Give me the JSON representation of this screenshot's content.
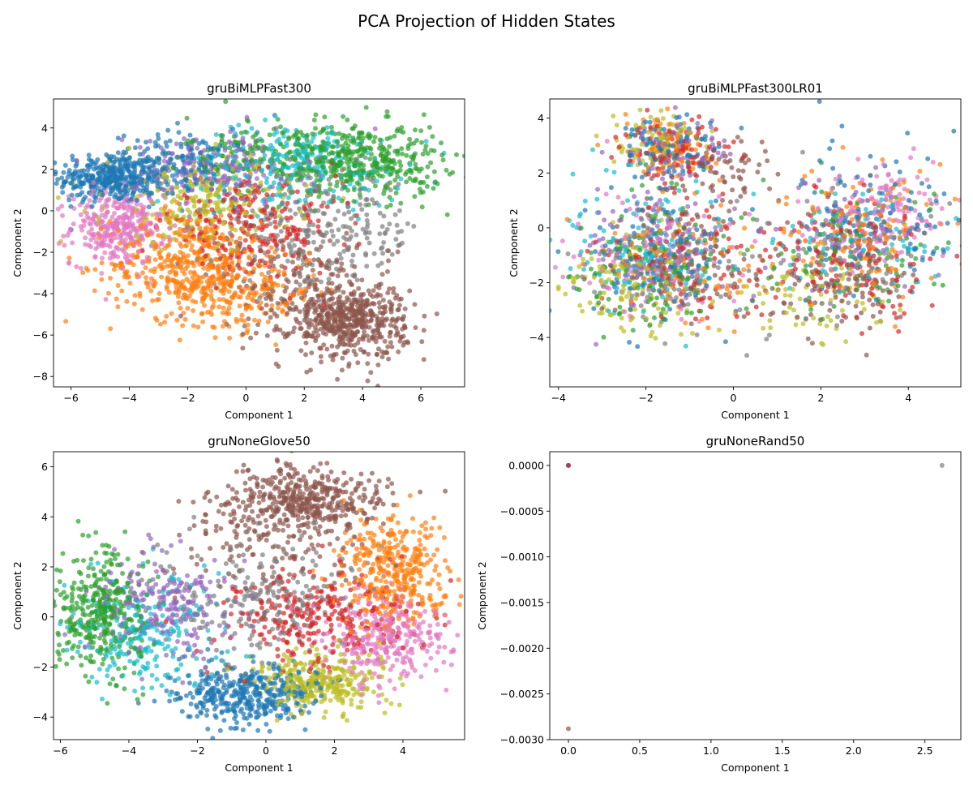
{
  "figure": {
    "title": "PCA Projection of Hidden States"
  },
  "palette": [
    "#1f77b4",
    "#ff7f0e",
    "#2ca02c",
    "#d62728",
    "#9467bd",
    "#8c564b",
    "#e377c2",
    "#7f7f7f",
    "#bcbd22",
    "#17becf"
  ],
  "chart_data": [
    {
      "type": "scatter",
      "title": "gruBiMLPFast300",
      "xlabel": "Component 1",
      "ylabel": "Component 2",
      "xlim": [
        -6.6,
        7.5
      ],
      "ylim": [
        -8.5,
        5.4
      ],
      "xticks": [
        -6,
        -4,
        -2,
        0,
        2,
        4,
        6
      ],
      "yticks": [
        -8,
        -6,
        -4,
        -2,
        0,
        2,
        4
      ],
      "clusters": [
        {
          "color": "#1f77b4",
          "center": [
            -4.6,
            1.6
          ],
          "spread": [
            0.9,
            0.6
          ],
          "n": 380
        },
        {
          "color": "#1f77b4",
          "center": [
            -2.2,
            2.2
          ],
          "spread": [
            1.2,
            0.8
          ],
          "n": 160
        },
        {
          "color": "#e377c2",
          "center": [
            -4.4,
            -0.8
          ],
          "spread": [
            0.8,
            0.9
          ],
          "n": 320
        },
        {
          "color": "#ff7f0e",
          "center": [
            -2.0,
            -2.6
          ],
          "spread": [
            1.3,
            1.3
          ],
          "n": 420
        },
        {
          "color": "#ff7f0e",
          "center": [
            0.0,
            -3.8
          ],
          "spread": [
            1.3,
            1.0
          ],
          "n": 180
        },
        {
          "color": "#2ca02c",
          "center": [
            4.0,
            2.4
          ],
          "spread": [
            1.4,
            0.9
          ],
          "n": 380
        },
        {
          "color": "#2ca02c",
          "center": [
            1.0,
            2.8
          ],
          "spread": [
            1.5,
            0.9
          ],
          "n": 160
        },
        {
          "color": "#17becf",
          "center": [
            1.8,
            2.2
          ],
          "spread": [
            1.8,
            1.0
          ],
          "n": 240
        },
        {
          "color": "#9467bd",
          "center": [
            -1.0,
            2.0
          ],
          "spread": [
            1.5,
            0.9
          ],
          "n": 200
        },
        {
          "color": "#bcbd22",
          "center": [
            -1.5,
            0.4
          ],
          "spread": [
            1.6,
            1.1
          ],
          "n": 240
        },
        {
          "color": "#d62728",
          "center": [
            0.2,
            -0.8
          ],
          "spread": [
            1.5,
            1.1
          ],
          "n": 240
        },
        {
          "color": "#7f7f7f",
          "center": [
            2.5,
            -1.0
          ],
          "spread": [
            1.8,
            1.4
          ],
          "n": 260
        },
        {
          "color": "#8c564b",
          "center": [
            3.5,
            -5.3
          ],
          "spread": [
            1.0,
            0.9
          ],
          "n": 520
        },
        {
          "color": "#8c564b",
          "center": [
            2.0,
            -3.6
          ],
          "spread": [
            1.6,
            1.2
          ],
          "n": 160
        }
      ]
    },
    {
      "type": "scatter",
      "title": "gruBiMLPFast300LR01",
      "xlabel": "Component 1",
      "ylabel": "Component 2",
      "xlim": [
        -4.2,
        5.2
      ],
      "ylim": [
        -5.8,
        4.7
      ],
      "xticks": [
        -4,
        -2,
        0,
        2,
        4
      ],
      "yticks": [
        -4,
        -2,
        0,
        2,
        4
      ],
      "clusters": [
        {
          "color": "#1f77b4",
          "center": [
            -1.5,
            3.0
          ],
          "spread": [
            0.6,
            0.6
          ],
          "n": 90
        },
        {
          "color": "#ff7f0e",
          "center": [
            -1.5,
            3.0
          ],
          "spread": [
            0.6,
            0.6
          ],
          "n": 90
        },
        {
          "color": "#d62728",
          "center": [
            -1.3,
            2.9
          ],
          "spread": [
            0.6,
            0.6
          ],
          "n": 90
        },
        {
          "color": "#bcbd22",
          "center": [
            -1.8,
            3.2
          ],
          "spread": [
            0.5,
            0.5
          ],
          "n": 70
        },
        {
          "color": "#9467bd",
          "center": [
            -1.4,
            2.7
          ],
          "spread": [
            0.6,
            0.6
          ],
          "n": 70
        },
        {
          "color": "#8c564b",
          "center": [
            -0.6,
            2.2
          ],
          "spread": [
            0.8,
            0.6
          ],
          "n": 70
        },
        {
          "color": "#1f77b4",
          "center": [
            -1.7,
            -1.0
          ],
          "spread": [
            0.9,
            1.1
          ],
          "n": 120
        },
        {
          "color": "#17becf",
          "center": [
            -2.0,
            -0.8
          ],
          "spread": [
            0.9,
            1.2
          ],
          "n": 130
        },
        {
          "color": "#2ca02c",
          "center": [
            -1.8,
            -1.4
          ],
          "spread": [
            0.9,
            1.1
          ],
          "n": 130
        },
        {
          "color": "#bcbd22",
          "center": [
            -2.4,
            -2.0
          ],
          "spread": [
            0.7,
            1.0
          ],
          "n": 120
        },
        {
          "color": "#9467bd",
          "center": [
            -1.8,
            -0.6
          ],
          "spread": [
            0.9,
            1.1
          ],
          "n": 120
        },
        {
          "color": "#e377c2",
          "center": [
            -1.5,
            -1.0
          ],
          "spread": [
            1.0,
            1.1
          ],
          "n": 100
        },
        {
          "color": "#ff7f0e",
          "center": [
            -1.2,
            -1.2
          ],
          "spread": [
            1.0,
            1.1
          ],
          "n": 100
        },
        {
          "color": "#8c564b",
          "center": [
            -0.8,
            -1.0
          ],
          "spread": [
            1.0,
            1.1
          ],
          "n": 90
        },
        {
          "color": "#d62728",
          "center": [
            -1.0,
            -1.3
          ],
          "spread": [
            1.0,
            1.1
          ],
          "n": 90
        },
        {
          "color": "#7f7f7f",
          "center": [
            -1.2,
            -1.5
          ],
          "spread": [
            1.0,
            1.1
          ],
          "n": 80
        },
        {
          "color": "#1f77b4",
          "center": [
            3.2,
            0.4
          ],
          "spread": [
            0.9,
            1.2
          ],
          "n": 130
        },
        {
          "color": "#ff7f0e",
          "center": [
            3.0,
            -0.2
          ],
          "spread": [
            0.9,
            1.3
          ],
          "n": 130
        },
        {
          "color": "#d62728",
          "center": [
            2.6,
            -1.2
          ],
          "spread": [
            0.9,
            1.1
          ],
          "n": 120
        },
        {
          "color": "#e377c2",
          "center": [
            3.4,
            0.8
          ],
          "spread": [
            0.8,
            1.0
          ],
          "n": 120
        },
        {
          "color": "#8c564b",
          "center": [
            2.2,
            -2.0
          ],
          "spread": [
            0.9,
            1.0
          ],
          "n": 100
        },
        {
          "color": "#bcbd22",
          "center": [
            2.0,
            -2.6
          ],
          "spread": [
            0.8,
            0.8
          ],
          "n": 80
        },
        {
          "color": "#9467bd",
          "center": [
            2.8,
            0.0
          ],
          "spread": [
            0.9,
            1.1
          ],
          "n": 80
        },
        {
          "color": "#2ca02c",
          "center": [
            2.6,
            -0.8
          ],
          "spread": [
            1.0,
            1.1
          ],
          "n": 80
        },
        {
          "color": "#7f7f7f",
          "center": [
            2.8,
            -1.0
          ],
          "spread": [
            1.0,
            1.1
          ],
          "n": 70
        },
        {
          "color": "#17becf",
          "center": [
            3.0,
            -0.5
          ],
          "spread": [
            1.0,
            1.1
          ],
          "n": 70
        }
      ]
    },
    {
      "type": "scatter",
      "title": "gruNoneGlove50",
      "xlabel": "Component 1",
      "ylabel": "Component 2",
      "xlim": [
        -6.2,
        5.8
      ],
      "ylim": [
        -4.9,
        6.6
      ],
      "xticks": [
        -6,
        -4,
        -2,
        0,
        2,
        4
      ],
      "yticks": [
        -4,
        -2,
        0,
        2,
        4,
        6
      ],
      "clusters": [
        {
          "color": "#8c564b",
          "center": [
            1.0,
            4.7
          ],
          "spread": [
            1.1,
            0.7
          ],
          "n": 420
        },
        {
          "color": "#8c564b",
          "center": [
            -0.3,
            3.2
          ],
          "spread": [
            1.4,
            1.1
          ],
          "n": 140
        },
        {
          "color": "#ff7f0e",
          "center": [
            3.8,
            1.8
          ],
          "spread": [
            0.8,
            1.1
          ],
          "n": 380
        },
        {
          "color": "#e377c2",
          "center": [
            3.5,
            -0.9
          ],
          "spread": [
            0.9,
            0.9
          ],
          "n": 300
        },
        {
          "color": "#2ca02c",
          "center": [
            -4.8,
            0.3
          ],
          "spread": [
            0.7,
            1.2
          ],
          "n": 380
        },
        {
          "color": "#17becf",
          "center": [
            -3.5,
            -0.6
          ],
          "spread": [
            1.0,
            1.1
          ],
          "n": 220
        },
        {
          "color": "#9467bd",
          "center": [
            -2.8,
            0.5
          ],
          "spread": [
            1.1,
            1.0
          ],
          "n": 230
        },
        {
          "color": "#7f7f7f",
          "center": [
            -0.2,
            0.8
          ],
          "spread": [
            1.5,
            1.2
          ],
          "n": 220
        },
        {
          "color": "#d62728",
          "center": [
            1.5,
            0.0
          ],
          "spread": [
            1.3,
            1.0
          ],
          "n": 280
        },
        {
          "color": "#1f77b4",
          "center": [
            -0.6,
            -3.1
          ],
          "spread": [
            1.0,
            0.6
          ],
          "n": 400
        },
        {
          "color": "#bcbd22",
          "center": [
            1.5,
            -2.6
          ],
          "spread": [
            0.9,
            0.6
          ],
          "n": 320
        }
      ]
    },
    {
      "type": "scatter",
      "title": "gruNoneRand50",
      "xlabel": "Component 1",
      "ylabel": "Component 2",
      "xlim": [
        -0.131,
        2.752
      ],
      "ylim": [
        -0.003,
        0.00015
      ],
      "xticks": [
        0.0,
        0.5,
        1.0,
        1.5,
        2.0,
        2.5
      ],
      "xtick_labels": [
        "0.0",
        "0.5",
        "1.0",
        "1.5",
        "2.0",
        "2.5"
      ],
      "yticks": [
        0.0,
        -0.0005,
        -0.001,
        -0.0015,
        -0.002,
        -0.0025,
        -0.003
      ],
      "ytick_labels": [
        "0.0000",
        "−0.0005",
        "−0.0010",
        "−0.0015",
        "−0.0020",
        "−0.0025",
        "−0.0030"
      ],
      "points": [
        {
          "x": 0.0,
          "y": 0.0,
          "color": "#9467bd"
        },
        {
          "x": 0.0,
          "y": 0.0,
          "color": "#1f77b4"
        },
        {
          "x": 0.0,
          "y": 0.0,
          "color": "#d62728"
        },
        {
          "x": 2.62,
          "y": 0.0,
          "color": "#7f7f7f"
        },
        {
          "x": 0.0,
          "y": -0.00288,
          "color": "#8c564b"
        }
      ]
    }
  ]
}
